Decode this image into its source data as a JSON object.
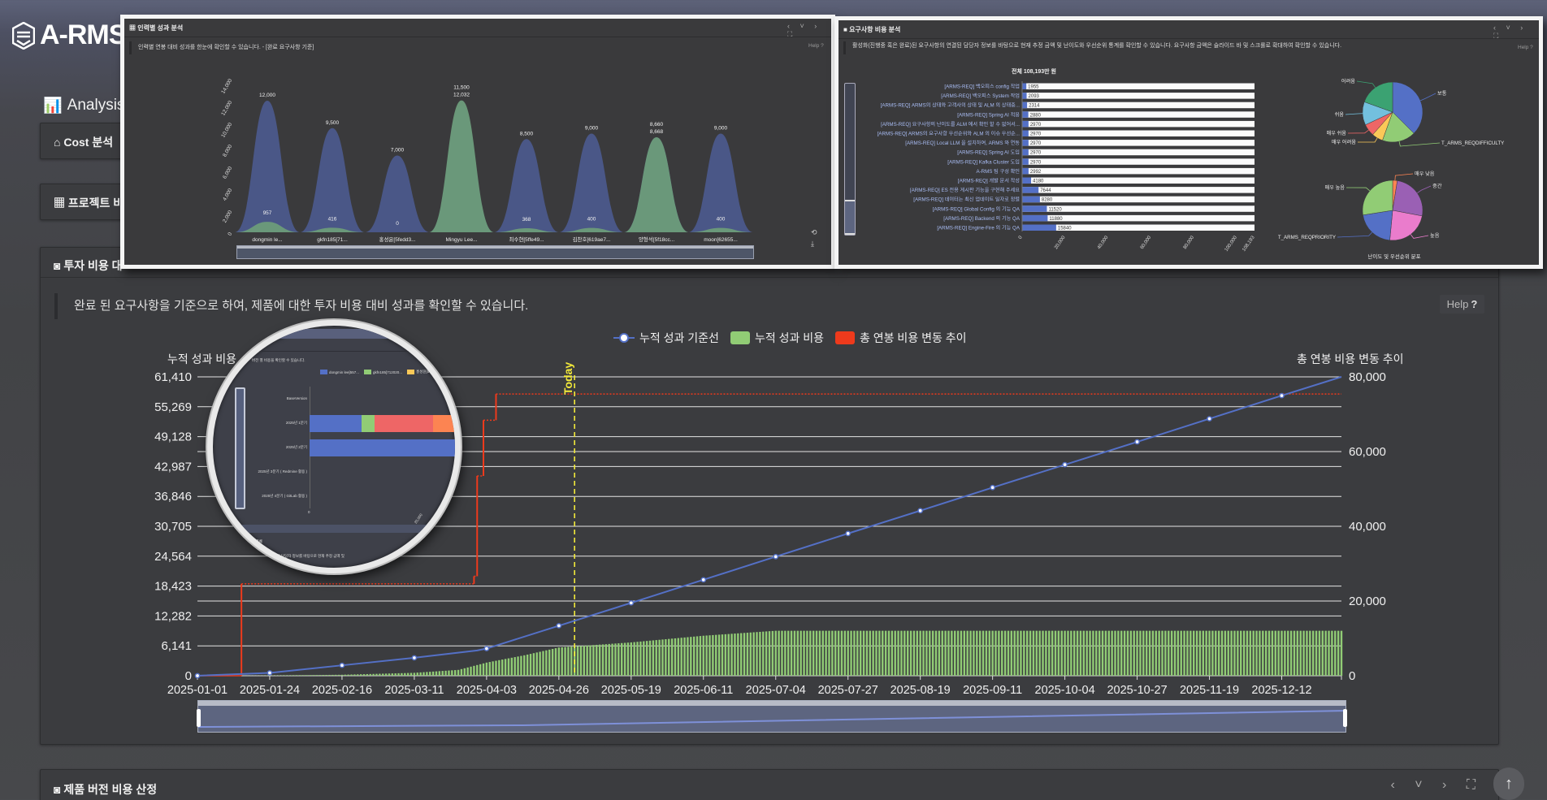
{
  "app": {
    "logo": "A-RMS",
    "section_title": "Analysis C"
  },
  "panels": {
    "cost": "Cost 분석",
    "project": "프로젝트 비",
    "investment": "투자 비용 대",
    "product_version": "제품 버전 비용 산정"
  },
  "main": {
    "description": "완료 된 요구사항을 기준으로 하여, 제품에 대한 투자 비용 대비 성과를 확인할 수 있습니다.",
    "help_label": "Help",
    "help_icon": "?",
    "today_label": "Today",
    "chart_data": {
      "type": "bar+line",
      "legend": [
        "누적 성과 기준선",
        "누적 성과 비용",
        "총 연봉 비용 변동 추이"
      ],
      "legend_placement": "top-center",
      "y_left": {
        "label": "누적 성과 비용",
        "ticks": [
          "0",
          "6,141",
          "12,282",
          "18,423",
          "24,564",
          "30,705",
          "36,846",
          "42,987",
          "49,128",
          "55,269",
          "61,410"
        ],
        "range": [
          0,
          61410
        ]
      },
      "y_right": {
        "label": "총 연봉 비용 변동 추이",
        "ticks": [
          "0",
          "20,000",
          "40,000",
          "60,000",
          "80,000"
        ],
        "range": [
          0,
          80000
        ]
      },
      "x": {
        "range": [
          "2025-01-01",
          "2025-12-31"
        ],
        "ticks": [
          "2025-01-01",
          "2025-01-24",
          "2025-02-16",
          "2025-03-11",
          "2025-04-03",
          "2025-04-26",
          "2025-05-19",
          "2025-06-11",
          "2025-07-04",
          "2025-07-27",
          "2025-08-19",
          "2025-09-11",
          "2025-10-04",
          "2025-10-27",
          "2025-11-19",
          "2025-12-12"
        ]
      },
      "grid": true,
      "series": [
        {
          "name": "누적 성과 기준선",
          "type": "line",
          "axis": "left",
          "color": "#5470c6",
          "points": [
            [
              "2025-01-01",
              0
            ],
            [
              "2025-01-24",
              594
            ],
            [
              "2025-02-16",
              2138
            ],
            [
              "2025-03-11",
              3683
            ],
            [
              "2025-03-31",
              5200
            ],
            [
              "2025-04-03",
              5584
            ],
            [
              "2025-04-26",
              10276
            ],
            [
              "2025-05-19",
              14969
            ],
            [
              "2025-06-11",
              19720
            ],
            [
              "2025-07-04",
              24473
            ],
            [
              "2025-07-27",
              29224
            ],
            [
              "2025-08-19",
              33917
            ],
            [
              "2025-09-11",
              38669
            ],
            [
              "2025-10-04",
              43362
            ],
            [
              "2025-10-27",
              48054
            ],
            [
              "2025-11-19",
              52806
            ],
            [
              "2025-12-12",
              57558
            ],
            [
              "2025-12-31",
              61410
            ]
          ]
        },
        {
          "name": "누적 성과 비용",
          "type": "bar",
          "axis": "left",
          "color": "#91cc75",
          "points": [
            [
              "2025-01-15",
              0
            ],
            [
              "2025-02-16",
              200
            ],
            [
              "2025-03-11",
              600
            ],
            [
              "2025-03-25",
              1200
            ],
            [
              "2025-04-03",
              2700
            ],
            [
              "2025-04-15",
              4200
            ],
            [
              "2025-04-26",
              5800
            ],
            [
              "2025-05-19",
              6850
            ],
            [
              "2025-06-11",
              8220
            ],
            [
              "2025-07-04",
              9240
            ],
            [
              "2025-12-31",
              9240
            ]
          ]
        },
        {
          "name": "총 연봉 비용 변동 추이",
          "type": "step",
          "axis": "right",
          "color": "#ee3a1c",
          "points": [
            [
              "2025-01-01",
              0
            ],
            [
              "2025-01-15",
              24600
            ],
            [
              "2025-03-30",
              26630
            ],
            [
              "2025-03-31",
              53480
            ],
            [
              "2025-04-02",
              68400
            ],
            [
              "2025-04-06",
              75400
            ],
            [
              "2025-12-31",
              75400
            ]
          ]
        }
      ]
    }
  },
  "overlay_people": {
    "title": "인력별 성과 분석",
    "description": "인력별 연봉 대비 성과를 한눈에 확인할 수 있습니다. - [완료 요구사항 기준]",
    "help": "Help ?",
    "controls": "‹ ˅ › ⛶",
    "chart_data": {
      "type": "area",
      "y_ticks": [
        "0",
        "2,000",
        "4,000",
        "6,000",
        "8,000",
        "10,000",
        "12,000",
        "14,000"
      ],
      "y_range": [
        0,
        14000
      ],
      "categories": [
        "dongmin le...",
        "gkfn185[71...",
        "홍성윤[5fedd3...",
        "Mingyu Lee...",
        "최수현[5ffe49...",
        "김찬호[619ae7...",
        "양형석[5f18cc...",
        "moon[62655..."
      ],
      "series": [
        {
          "color": "#4a5889",
          "values": [
            12000,
            9500,
            7000,
            11500,
            8500,
            9000,
            8660,
            9000
          ],
          "labels": [
            "12,000",
            "9,500",
            "7,000",
            "11,500",
            "8,500",
            "9,000",
            "8,660",
            "9,000"
          ]
        },
        {
          "color": "#6b9a7a",
          "values": [
            957,
            416,
            0,
            12032,
            368,
            400,
            8668,
            400
          ],
          "labels": [
            "957",
            "416",
            "0",
            "12,032",
            "368",
            "400",
            "8,668",
            "400"
          ]
        }
      ]
    }
  },
  "overlay_requirements": {
    "title": "요구사항 비용 분석",
    "description": "활성화(진행중 혹은 완료)된 요구사항의 연결된 담당자 정보를 바탕으로 현재 추정 금액 및 난이도와 우선순위 통계를 확인할 수 있습니다. 요구사항 금액은 슬라이드 바 및 스크롤로 확대하여 확인할 수 있습니다.",
    "help": "Help ?",
    "controls": "‹ ˅ › ⛶",
    "total": "전체 108,193만 원",
    "bar_chart": {
      "type": "bar",
      "categories": [
        "[ARMS-REQ] 백오피스 config 작업",
        "[ARMS-REQ] 백오피스 System 작업",
        "[ARMS-REQ] ARMS의 상태와 고객사의 상태 및 ALM 의 상태중...",
        "[ARMS-REQ] Spring AI 적용",
        "[ARMS-REQ] 요구사항의 난이도를 ALM 에서 확인 할 수 없어서...",
        "[ARMS-REQ] ARMS의 요구사항 우선순위와 ALM 의 이슈 우선순...",
        "[ARMS-REQ] Local LLM 을 설치하여, ARMS 와 연동",
        "[ARMS-REQ] Spring AI 도입",
        "[ARMS-REQ] Kafka Cluster 도입",
        "A-RMS 팀 구성 확인",
        "[ARMS-REQ] 개발 문서 작성",
        "[ARMS-REQ] ES 전용 게시판 기능을 구현해 주세요",
        "[ARMS-REQ] 데이터는 최신 업데이트 일자로 정렬",
        "[ARMS-REQ] Global Config 의 기능 QA",
        "[ARMS-REQ] Backend 의 기능 QA",
        "[ARMS-REQ] Engine-Fire 의 기능 QA"
      ],
      "values": [
        1955,
        2093,
        2314,
        2880,
        2970,
        2970,
        2970,
        2970,
        2970,
        2992,
        4180,
        7644,
        8280,
        11520,
        11880,
        15840
      ],
      "x_ticks": [
        "0",
        "20,000",
        "40,000",
        "60,000",
        "80,000",
        "100,000",
        "108,193"
      ],
      "x_range": [
        0,
        108193
      ],
      "color": "#5470c6"
    },
    "pie_title": "난이도 및 우선순위 분포",
    "pies": [
      {
        "slices": [
          {
            "label": "보통",
            "share": 37.5,
            "color": "#5470c6"
          },
          {
            "label": "T_ARMS_REQDIFFICULTY",
            "share": 18,
            "color": "#91cc75"
          },
          {
            "label": "매우 어려움",
            "share": 6,
            "color": "#fac858"
          },
          {
            "label": "매우 쉬움",
            "share": 6.5,
            "color": "#ee6666"
          },
          {
            "label": "쉬움",
            "share": 12.5,
            "color": "#73c0de"
          },
          {
            "label": "어려움",
            "share": 19.5,
            "color": "#3ba272"
          }
        ]
      },
      {
        "slices": [
          {
            "label": "매우 낮음",
            "share": 2.5,
            "color": "#fc8452"
          },
          {
            "label": "중간",
            "share": 25.5,
            "color": "#9a60b4"
          },
          {
            "label": "높음",
            "share": 23.5,
            "color": "#ea7ccc"
          },
          {
            "label": "T_ARMS_REQPRIORITY",
            "share": 21,
            "color": "#5470c6"
          },
          {
            "label": "매우 높음",
            "share": 27.5,
            "color": "#91cc75"
          }
        ]
      }
    ]
  },
  "magnifier": {
    "header_fragment": "별",
    "description_fragment": "버전 별 비용을 확인할 수 있습니다.",
    "legend": [
      {
        "label": "dongmin lee[557...",
        "color": "#5470c6"
      },
      {
        "label": "gkfn185[712020...",
        "color": "#91cc75"
      },
      {
        "label": "홍성윤[5fedd...",
        "color": "#fac858"
      }
    ],
    "categories": [
      "BaseVersion",
      "2025년 1분기",
      "2025년 2분기",
      "2025년 3분기 ( Redmine 활용 )",
      "2025년 4분기 ( GitLab 활용 )"
    ],
    "x_ticks": [
      "0",
      "20,000"
    ],
    "footer_title": "비용 분석",
    "footer_desc": "된 요구사항의 연결된 담당자 정보를 바탕으로 현재 추정 금액 및"
  },
  "bottom": {
    "controls": "‹ ˅ › ⛶",
    "scroll_top_icon": "↑"
  }
}
